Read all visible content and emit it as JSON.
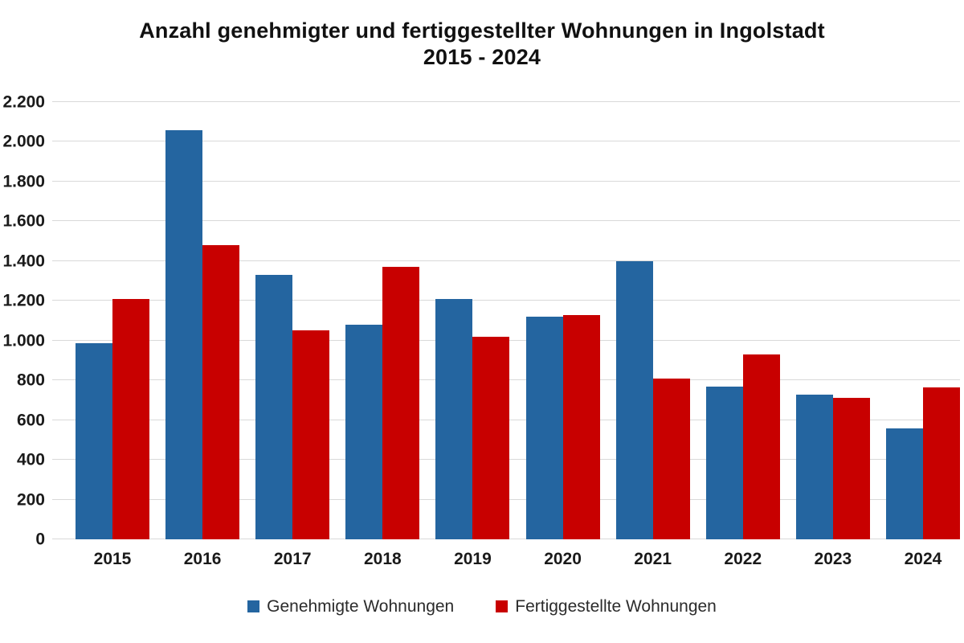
{
  "chart_data": {
    "type": "bar",
    "title": "Anzahl genehmigter und fertiggestellter Wohnungen in Ingolstadt",
    "subtitle": "2015 - 2024",
    "categories": [
      "2015",
      "2016",
      "2017",
      "2018",
      "2019",
      "2020",
      "2021",
      "2022",
      "2023",
      "2024"
    ],
    "series": [
      {
        "name": "Genehmigte Wohnungen",
        "color": "#2465a0",
        "values": [
          985,
          2060,
          1330,
          1080,
          1210,
          1120,
          1400,
          770,
          730,
          560
        ]
      },
      {
        "name": "Fertiggestellte Wohnungen",
        "color": "#c80000",
        "values": [
          1210,
          1480,
          1050,
          1370,
          1020,
          1130,
          810,
          930,
          710,
          765
        ]
      }
    ],
    "ylim": [
      0,
      2200
    ],
    "ytick_step": 200,
    "ytick_labels": [
      "0",
      "200",
      "400",
      "600",
      "800",
      "1.000",
      "1.200",
      "1.400",
      "1.600",
      "1.800",
      "2.000",
      "2.200"
    ],
    "grid": true,
    "gridline_color": "#d9d9d9",
    "legend_position": "bottom"
  }
}
